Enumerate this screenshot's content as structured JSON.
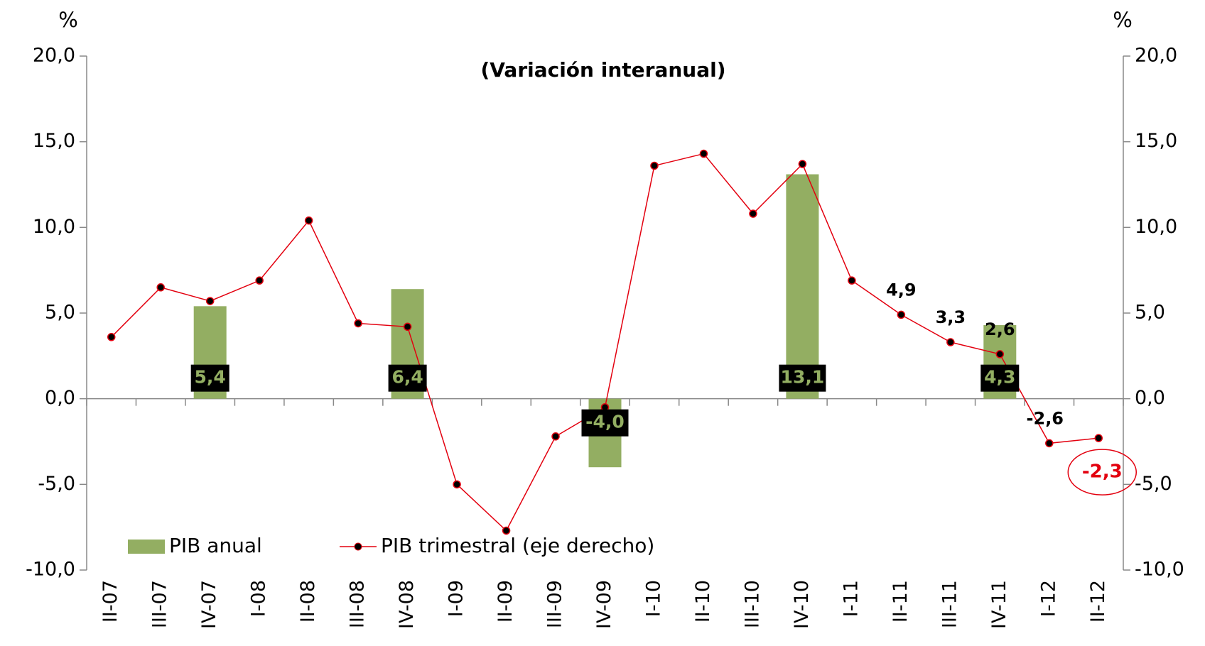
{
  "chart_data": {
    "type": "bar-line",
    "title": "(Variación interanual)",
    "y_unit": "%",
    "y2_unit": "%",
    "categories": [
      "II-07",
      "III-07",
      "IV-07",
      "I-08",
      "II-08",
      "III-08",
      "IV-08",
      "I-09",
      "II-09",
      "III-09",
      "IV-09",
      "I-10",
      "II-10",
      "III-10",
      "IV-10",
      "I-11",
      "II-11",
      "III-11",
      "IV-11",
      "I-12",
      "II-12"
    ],
    "series": [
      {
        "name": "PIB anual",
        "type": "bar",
        "color": "#93ae62",
        "values": [
          null,
          null,
          5.4,
          null,
          null,
          null,
          6.4,
          null,
          null,
          null,
          -4.0,
          null,
          null,
          null,
          13.1,
          null,
          null,
          null,
          4.3,
          null,
          null
        ],
        "value_labels": [
          null,
          null,
          "5,4",
          null,
          null,
          null,
          "6,4",
          null,
          null,
          null,
          "-4,0",
          null,
          null,
          null,
          "13,1",
          null,
          null,
          null,
          "4,3",
          null,
          null
        ]
      },
      {
        "name": "PIB trimestral (eje derecho)",
        "type": "line",
        "axis": "y2",
        "color": "#e3000f",
        "values": [
          3.6,
          6.5,
          5.7,
          6.9,
          10.4,
          4.4,
          4.2,
          -5.0,
          -7.7,
          -2.2,
          -0.5,
          13.6,
          14.3,
          10.8,
          13.7,
          6.9,
          4.9,
          3.3,
          2.6,
          -2.6,
          -2.3
        ],
        "value_labels": [
          null,
          null,
          null,
          null,
          null,
          null,
          null,
          null,
          null,
          null,
          null,
          null,
          null,
          null,
          null,
          null,
          "4,9",
          "3,3",
          "2,6",
          "-2,6",
          "-2,3"
        ]
      }
    ],
    "ylim": [
      -10,
      20
    ],
    "yticks": [
      {
        "value": -10,
        "label": "-10,0"
      },
      {
        "value": -5,
        "label": "-5,0"
      },
      {
        "value": 0,
        "label": "0,0"
      },
      {
        "value": 5,
        "label": "5,0"
      },
      {
        "value": 10,
        "label": "10,0"
      },
      {
        "value": 15,
        "label": "15,0"
      },
      {
        "value": 20,
        "label": "20,0"
      }
    ],
    "y2lim": [
      -10,
      20
    ],
    "y2ticks": [
      {
        "value": -10,
        "label": "-10,0"
      },
      {
        "value": -5,
        "label": "-5,0"
      },
      {
        "value": 0,
        "label": "0,0"
      },
      {
        "value": 5,
        "label": "5,0"
      },
      {
        "value": 10,
        "label": "10,0"
      },
      {
        "value": 15,
        "label": "15,0"
      },
      {
        "value": 20,
        "label": "20,0"
      }
    ],
    "legend": "bottom-left"
  }
}
